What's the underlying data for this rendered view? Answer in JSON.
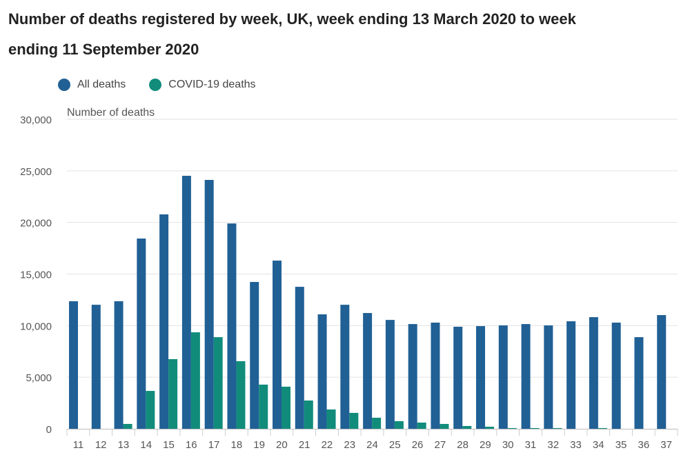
{
  "chart_data": {
    "type": "bar",
    "title": "Number of deaths registered by week, UK, week ending 13 March 2020 to week ending 11 September 2020",
    "ylabel": "Number of deaths",
    "xlabel": "",
    "ylim": [
      0,
      30000
    ],
    "yticks": [
      "0",
      "5,000",
      "10,000",
      "15,000",
      "20,000",
      "25,000",
      "30,000"
    ],
    "grid": true,
    "legend_position": "top-left",
    "categories": [
      "11",
      "12",
      "13",
      "14",
      "15",
      "16",
      "17",
      "18",
      "19",
      "20",
      "21",
      "22",
      "23",
      "24",
      "25",
      "26",
      "27",
      "28",
      "29",
      "30",
      "31",
      "32",
      "33",
      "34",
      "35",
      "36",
      "37"
    ],
    "series": [
      {
        "name": "All deaths",
        "color": "#206095",
        "values": [
          12360,
          12020,
          12360,
          18440,
          20780,
          24520,
          24120,
          19900,
          14230,
          16300,
          13760,
          11090,
          12020,
          11220,
          10550,
          10150,
          10290,
          9890,
          9950,
          10020,
          10150,
          10020,
          10420,
          10820,
          10290,
          8880,
          11020
        ]
      },
      {
        "name": "COVID-19 deaths",
        "color": "#118c7b",
        "values": [
          0,
          0,
          470,
          3670,
          6750,
          9350,
          8880,
          6550,
          4280,
          4080,
          2740,
          1870,
          1540,
          1070,
          740,
          600,
          470,
          270,
          200,
          70,
          70,
          70,
          0,
          70,
          0,
          0,
          0
        ]
      }
    ]
  }
}
